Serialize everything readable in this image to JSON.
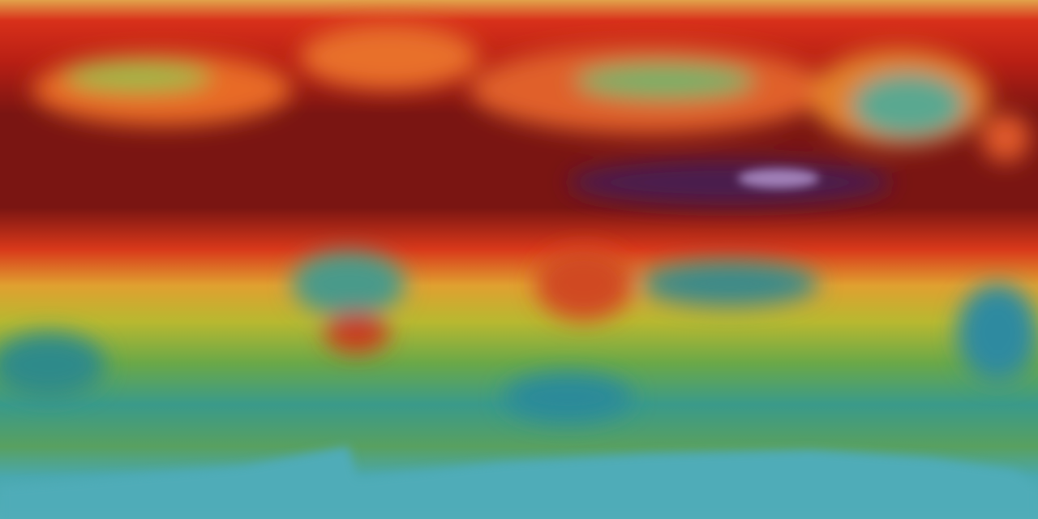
{
  "map": {
    "projection": "equirectangular",
    "palette": {
      "high": "#7a1512",
      "very_high": "#4a1a50",
      "elevated": "#d8301a",
      "mid": "#e0a030",
      "moderate": "#b8b830",
      "low": "#3a9a8a",
      "lowest": "#4aa8b0"
    }
  }
}
